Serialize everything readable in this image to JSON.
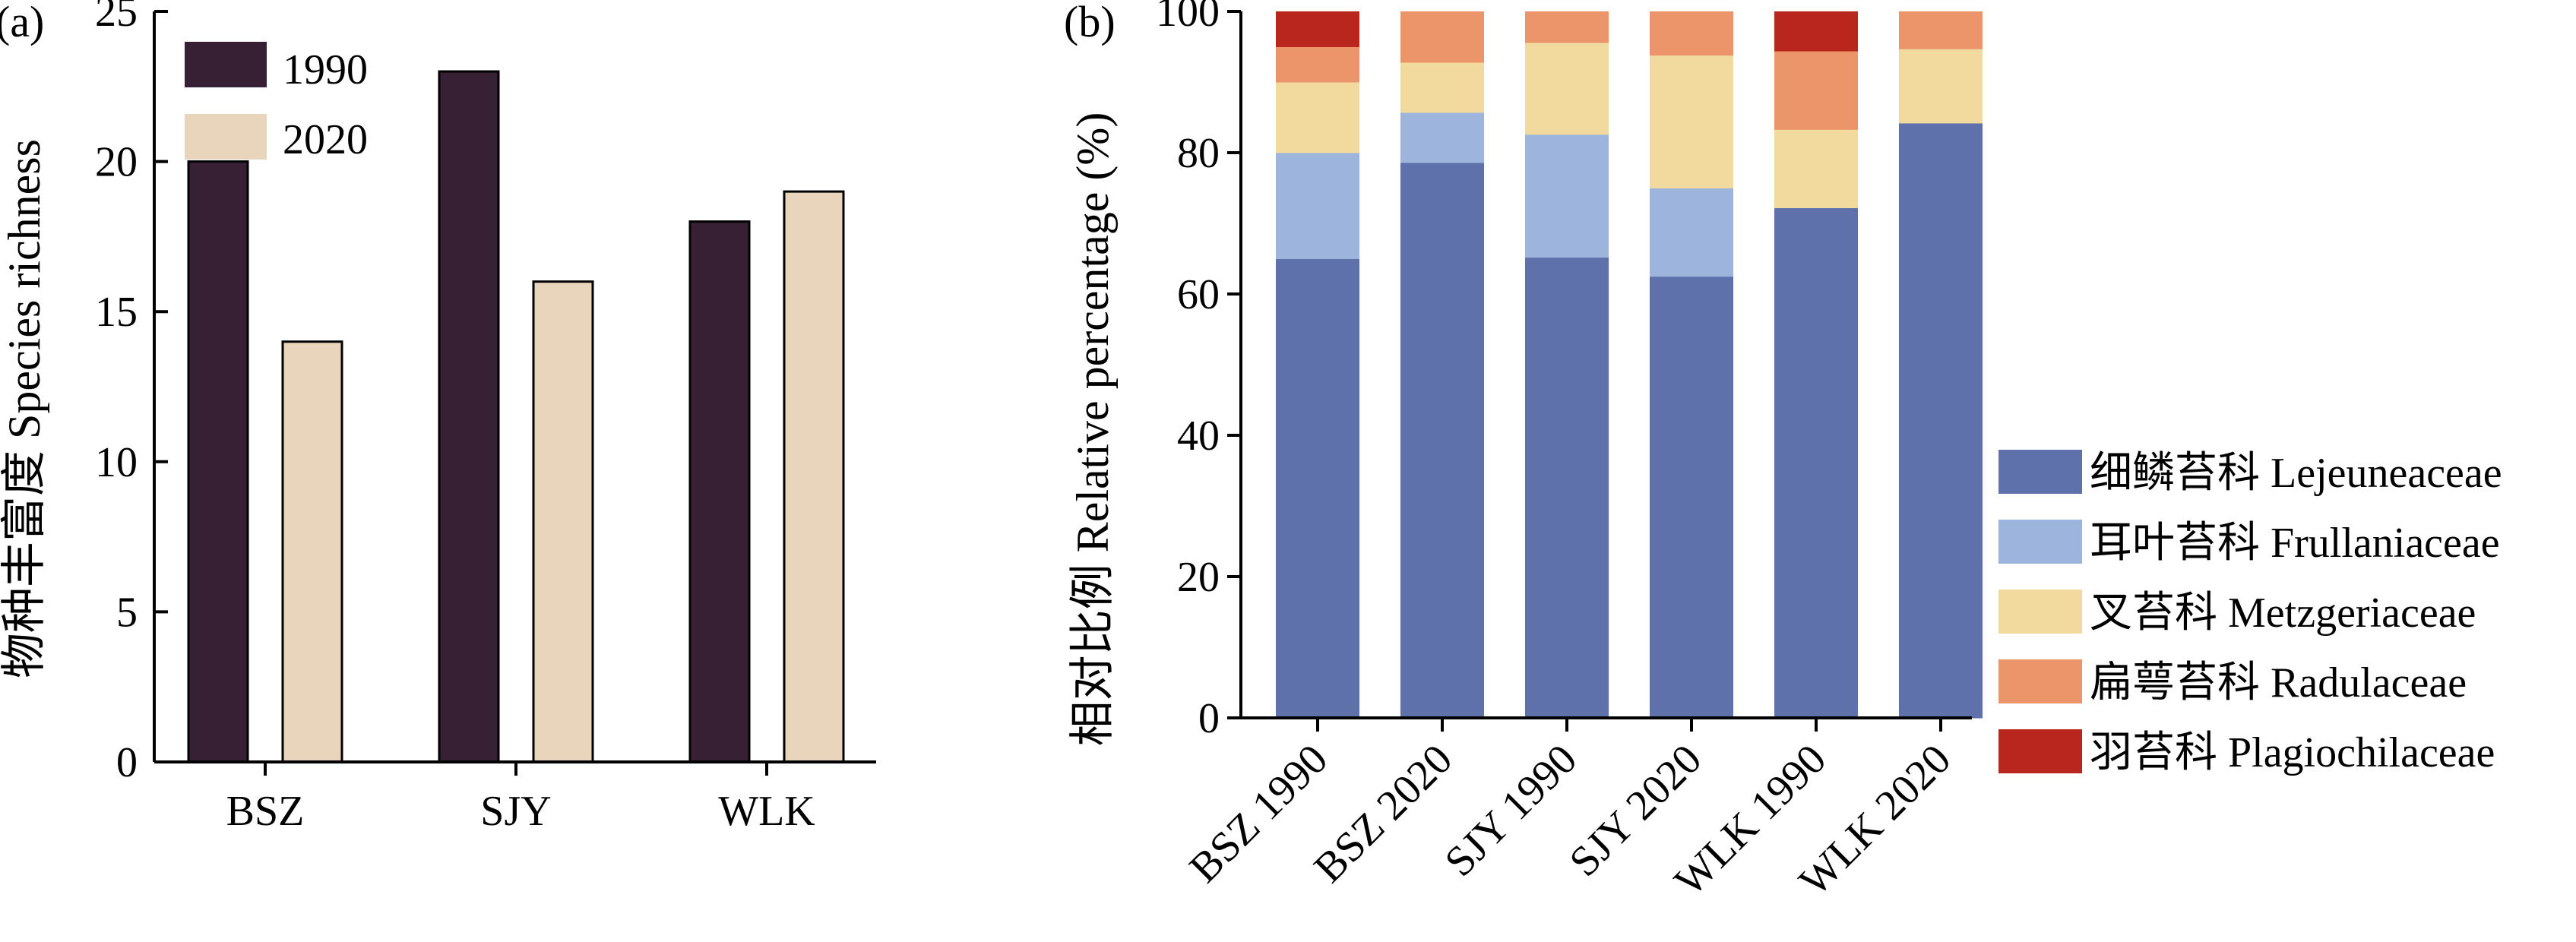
{
  "colors": {
    "1990": "#372033",
    "2020": "#e8d5bb",
    "Lejeuneaceae": "#5f71ab",
    "Frullaniaceae": "#9db4dc",
    "Metzgeriaceae": "#f2da9e",
    "Radulaceae": "#ed956a",
    "Plagiochilaceae": "#b8261e"
  },
  "chart_data": [
    {
      "type": "bar",
      "panel_label": "(a)",
      "categories": [
        "BSZ",
        "SJY",
        "WLK"
      ],
      "series": [
        {
          "name": "1990",
          "values": [
            20,
            23,
            18
          ]
        },
        {
          "name": "2020",
          "values": [
            14,
            16,
            19
          ]
        }
      ],
      "ylabel": "物种丰富度 Species richness",
      "ylim": [
        0,
        25
      ],
      "yticks": [
        0,
        5,
        10,
        15,
        20,
        25
      ],
      "grid": false,
      "legend_position": "top-left"
    },
    {
      "type": "bar",
      "stacked": true,
      "panel_label": "(b)",
      "categories": [
        "BSZ 1990",
        "BSZ 2020",
        "SJY 1990",
        "SJY 2020",
        "WLK 1990",
        "WLK 2020"
      ],
      "series": [
        {
          "name": "细鳞苔科 Lejeuneaceae",
          "key": "Lejeuneaceae",
          "values": [
            65,
            78.6,
            65.2,
            62.5,
            72.2,
            84.2
          ]
        },
        {
          "name": "耳叶苔科 Frullaniaceae",
          "key": "Frullaniaceae",
          "values": [
            15,
            7.1,
            17.4,
            12.5,
            0,
            0
          ]
        },
        {
          "name": "叉苔科 Metzgeriaceae",
          "key": "Metzgeriaceae",
          "values": [
            10,
            7.1,
            13.0,
            18.8,
            11.1,
            10.5
          ]
        },
        {
          "name": "扁萼苔科 Radulaceae",
          "key": "Radulaceae",
          "values": [
            5,
            7.2,
            4.4,
            6.2,
            11.1,
            5.3
          ]
        },
        {
          "name": "羽苔科 Plagiochilaceae",
          "key": "Plagiochilaceae",
          "values": [
            5,
            0,
            0,
            0,
            5.6,
            0
          ]
        }
      ],
      "ylabel": "相对比例 Relative percentage (%)",
      "ylim": [
        0,
        100
      ],
      "yticks": [
        0,
        20,
        40,
        60,
        80,
        100
      ],
      "grid": false,
      "legend_position": "right"
    }
  ]
}
